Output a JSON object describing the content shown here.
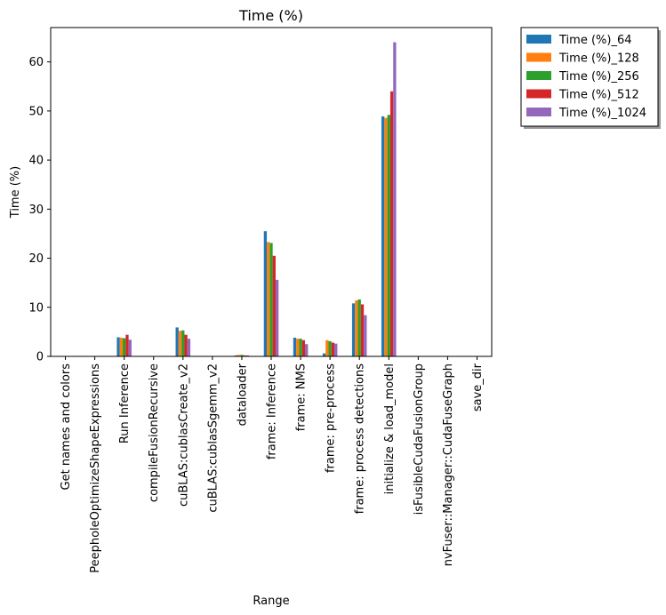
{
  "chart_data": {
    "type": "bar",
    "title": "Time (%)",
    "xlabel": "Range",
    "ylabel": "Time (%)",
    "ylim": [
      0,
      67
    ],
    "yticks": [
      0,
      10,
      20,
      30,
      40,
      50,
      60
    ],
    "legend_position": "outside-top-right",
    "categories": [
      "Get names and colors",
      "PeepholeOptimizeShapeExpressions",
      "Run Inference",
      "compileFusionRecursive",
      "cuBLAS:cublasCreate_v2",
      "cuBLAS:cublasSgemm_v2",
      "dataloader",
      "frame: Inference",
      "frame: NMS",
      "frame: pre-process",
      "frame: process detections",
      "initialize & load_model",
      "isFusibleCudaFusionGroup",
      "nvFuser::Manager::CudaFuseGraph",
      "save_dir"
    ],
    "series": [
      {
        "name": "Time (%)_64",
        "color": "#1f77b4",
        "values": [
          0,
          0,
          3.9,
          0,
          5.9,
          0,
          0.2,
          25.5,
          3.8,
          0.6,
          10.8,
          48.9,
          0,
          0,
          0
        ]
      },
      {
        "name": "Time (%)_128",
        "color": "#ff7f0e",
        "values": [
          0,
          0,
          3.8,
          0,
          5.2,
          0,
          0.3,
          23.3,
          3.6,
          3.3,
          11.4,
          48.6,
          0,
          0,
          0
        ]
      },
      {
        "name": "Time (%)_256",
        "color": "#2ca02c",
        "values": [
          0,
          0,
          3.7,
          0,
          5.3,
          0,
          0.3,
          23.1,
          3.6,
          3.1,
          11.6,
          49.2,
          0,
          0.1,
          0
        ]
      },
      {
        "name": "Time (%)_512",
        "color": "#d62728",
        "values": [
          0,
          0,
          4.4,
          0,
          4.4,
          0,
          0.2,
          20.5,
          3.3,
          2.8,
          10.6,
          54.0,
          0,
          0,
          0
        ]
      },
      {
        "name": "Time (%)_1024",
        "color": "#9467bd",
        "values": [
          0,
          0,
          3.4,
          0,
          3.6,
          0,
          0.2,
          15.6,
          2.5,
          2.6,
          8.4,
          64.0,
          0,
          0,
          0
        ]
      }
    ]
  }
}
